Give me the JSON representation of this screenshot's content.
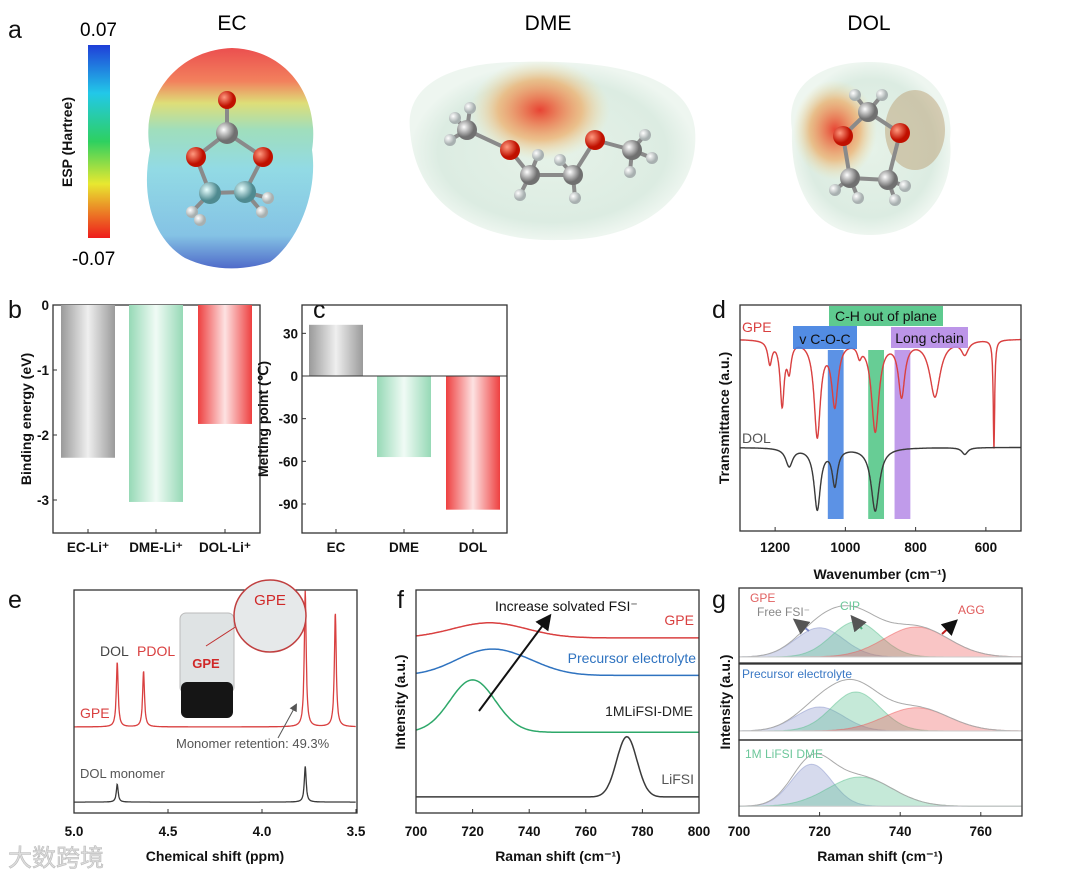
{
  "panel_labels": {
    "a": "a",
    "b": "b",
    "c": "c",
    "d": "d",
    "e": "e",
    "f": "f",
    "g": "g"
  },
  "watermark": "大数跨境",
  "panel_a": {
    "colorbar_title": "ESP (Hartree)",
    "colorbar_max": "0.07",
    "colorbar_min": "-0.07",
    "molecules": [
      "EC",
      "DME",
      "DOL"
    ]
  },
  "chart_data": [
    {
      "id": "b",
      "type": "bar",
      "categories": [
        "EC-Li⁺",
        "DME-Li⁺",
        "DOL-Li⁺"
      ],
      "values": [
        -2.35,
        -3.03,
        -1.83
      ],
      "ylabel": "Binding energy (eV)",
      "xlabel": "",
      "ylim": [
        -3.5,
        0
      ],
      "yticks": [
        0,
        -1,
        -2,
        -3
      ],
      "colors": [
        "#a4a4a4",
        "#9edcbc",
        "#ef4c4c"
      ]
    },
    {
      "id": "c",
      "type": "bar",
      "categories": [
        "EC",
        "DME",
        "DOL"
      ],
      "values": [
        36,
        -57,
        -94
      ],
      "ylabel": "Melting point (℃)",
      "xlabel": "",
      "ylim": [
        -110,
        50
      ],
      "yticks": [
        30,
        0,
        -30,
        -60,
        -90
      ],
      "colors": [
        "#a4a4a4",
        "#9edcbc",
        "#ef4c4c"
      ]
    },
    {
      "id": "d",
      "type": "line",
      "xlabel": "Wavenumber (cm⁻¹)",
      "ylabel": "Transmittance (a.u.)",
      "xlim": [
        1300,
        500
      ],
      "xticks": [
        1200,
        1000,
        800,
        600
      ],
      "series": [
        {
          "name": "GPE",
          "color": "#d94040",
          "baseline": 0.85,
          "dips": [
            [
              1215,
              0.1,
              7
            ],
            [
              1180,
              0.28,
              7
            ],
            [
              1160,
              0.12,
              7
            ],
            [
              1080,
              0.42,
              11
            ],
            [
              1030,
              0.28,
              11
            ],
            [
              960,
              0.05,
              7
            ],
            [
              915,
              0.4,
              13
            ],
            [
              840,
              0.24,
              11
            ],
            [
              745,
              0.25,
              18
            ],
            [
              660,
              0.06,
              12
            ],
            [
              577,
              0.48,
              2.5
            ]
          ]
        },
        {
          "name": "DOL",
          "color": "#3a3a3a",
          "baseline": 0.37,
          "dips": [
            [
              1160,
              0.08,
              12
            ],
            [
              1080,
              0.27,
              11
            ],
            [
              1030,
              0.16,
              9
            ],
            [
              915,
              0.28,
              14
            ],
            [
              660,
              0.03,
              10
            ]
          ]
        }
      ],
      "bands": [
        {
          "label": "v C-O-C",
          "range": [
            1050,
            1005
          ],
          "color": "#3f7fe0"
        },
        {
          "label": "C-H out of plane",
          "range": [
            935,
            890
          ],
          "color": "#4cc483"
        },
        {
          "label": "Long chain",
          "range": [
            860,
            815
          ],
          "color": "#b58ae6"
        }
      ]
    },
    {
      "id": "e",
      "type": "line",
      "xlabel": "Chemical shift (ppm)",
      "ylabel": "",
      "xlim": [
        5.0,
        3.5
      ],
      "xticks": [
        "5.0",
        "4.5",
        "4.0",
        "3.5"
      ],
      "series": [
        {
          "name": "GPE",
          "color": "#d94040",
          "baseline": 0.386,
          "peaks": [
            [
              4.77,
              0.29
            ],
            [
              4.63,
              0.25
            ],
            [
              3.77,
              0.61
            ],
            [
              3.61,
              0.51
            ]
          ]
        },
        {
          "name": "DOL monomer",
          "color": "#3a3a3a",
          "baseline": 0.049,
          "peaks": [
            [
              4.77,
              0.08
            ],
            [
              3.77,
              0.16
            ]
          ]
        }
      ],
      "annotations": {
        "dol": "DOL",
        "pdol": "PDOL",
        "gpe": "GPE",
        "retention": "Monomer retention: 49.3%",
        "inset_vial": "GPE",
        "inset_zoom": "GPE"
      }
    },
    {
      "id": "f",
      "type": "line",
      "xlabel": "Raman shift (cm⁻¹)",
      "ylabel": "Intensity (a.u.)",
      "xlim": [
        700,
        800
      ],
      "xticks": [
        700,
        720,
        740,
        760,
        780,
        800
      ],
      "series": [
        {
          "name": "GPE",
          "color": "#d94040",
          "baseline": 0.785,
          "peaks": [
            [
              726,
              0.068,
              13
            ]
          ]
        },
        {
          "name": "Precursor electrolyte",
          "color": "#2f73c0",
          "baseline": 0.617,
          "peaks": [
            [
              724,
              0.1,
              11
            ],
            [
              738,
              0.04,
              10
            ]
          ]
        },
        {
          "name": "1MLiFSI-DME",
          "color": "#2ea86a",
          "baseline": 0.362,
          "peaks": [
            [
              720,
              0.235,
              8
            ]
          ]
        },
        {
          "name": "LiFSI",
          "color": "#3a3a3a",
          "baseline": 0.072,
          "peaks": [
            [
              774.5,
              0.27,
              3.6
            ]
          ]
        }
      ],
      "annotation": "Increase solvated FSI⁻"
    },
    {
      "id": "g",
      "type": "area",
      "xlabel": "Raman shift (cm⁻¹)",
      "ylabel": "Intensity (a.u.)",
      "xlim": [
        700,
        770
      ],
      "xticks": [
        700,
        720,
        740,
        760
      ],
      "panels": [
        {
          "name": "GPE",
          "baseline": 0.08,
          "components": [
            {
              "name": "Free FSI⁻",
              "center": 720,
              "height": 0.39,
              "sigma": 6,
              "color": "#8a96cc"
            },
            {
              "name": "CIP",
              "center": 729,
              "height": 0.47,
              "sigma": 6,
              "color": "#59c08e"
            },
            {
              "name": "AGG",
              "center": 744,
              "height": 0.4,
              "sigma": 8,
              "color": "#ef5a5a"
            }
          ]
        },
        {
          "name": "Precursor electrolyte",
          "baseline": 0.12,
          "components": [
            {
              "name": "Free FSI⁻",
              "center": 720,
              "height": 0.32,
              "sigma": 6,
              "color": "#8a96cc"
            },
            {
              "name": "CIP",
              "center": 729,
              "height": 0.52,
              "sigma": 6,
              "color": "#59c08e"
            },
            {
              "name": "AGG",
              "center": 744,
              "height": 0.31,
              "sigma": 8,
              "color": "#ef5a5a"
            }
          ]
        },
        {
          "name": "1M LiFSI DME",
          "baseline": 0.13,
          "components": [
            {
              "name": "Free FSI⁻",
              "center": 718,
              "height": 0.56,
              "sigma": 5,
              "color": "#8a96cc"
            },
            {
              "name": "CIP",
              "center": 730,
              "height": 0.39,
              "sigma": 8,
              "color": "#59c08e"
            }
          ]
        }
      ]
    }
  ]
}
